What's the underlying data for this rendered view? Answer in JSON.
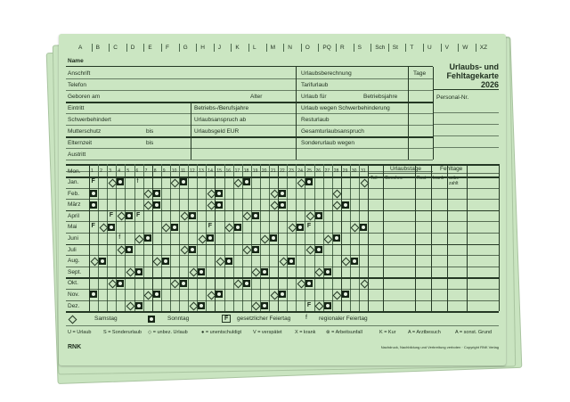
{
  "card": {
    "title_line1": "Urlaubs- und",
    "title_line2": "Fehltagekarte",
    "title_year": "2026",
    "alphabet": [
      "A",
      "B",
      "C",
      "D",
      "E",
      "F",
      "G",
      "H",
      "J",
      "K",
      "L",
      "M",
      "N",
      "O",
      "PQ",
      "R",
      "S",
      "Sch",
      "St",
      "T",
      "U",
      "V",
      "W",
      "XZ"
    ],
    "name_label": "Name",
    "left_rows": [
      "Anschrift",
      "Telefon",
      "Geboren am"
    ],
    "age_label": "Alter",
    "left_rows2": [
      "Eintritt",
      "Schwerbehindert",
      "Mutterschutz",
      "Elternzeit",
      "Austritt"
    ],
    "bis_label": "bis",
    "mid_rows": [
      "Betriebs-/Berufsjahre",
      "Urlaubsanspruch ab",
      "Urlaubsgeld EUR"
    ],
    "calc_header": "Urlaubsberechnung",
    "days_header": "Tage",
    "calc_rows": [
      "Tarifurlaub",
      "Urlaub für",
      "Urlaub wegen Schwerbehinderung",
      "Resturlaub",
      "Gesamturlaubsanspruch",
      "Sonderurlaub wegen"
    ],
    "betriebsjahre_label": "Betriebsjahre",
    "personal_nr_label": "Personal-Nr.",
    "month_header": "Mon.",
    "months": [
      "Jan.",
      "Feb.",
      "März",
      "April",
      "Mai",
      "Juni",
      "Juli",
      "Aug.",
      "Sept.",
      "Okt.",
      "Nov.",
      "Dez."
    ],
    "year": 2026,
    "holidays_legal": [
      [
        1,
        1
      ],
      [
        4,
        3
      ],
      [
        4,
        6
      ],
      [
        5,
        1
      ],
      [
        5,
        14
      ],
      [
        5,
        25
      ],
      [
        10,
        3
      ],
      [
        12,
        25
      ],
      [
        12,
        26
      ]
    ],
    "holidays_regional": [
      [
        1,
        6
      ],
      [
        6,
        4
      ],
      [
        8,
        15
      ],
      [
        11,
        1
      ]
    ],
    "urlaubstage_header": "Urlaubstage",
    "fehltage_header": "Fehltage",
    "sub_headers": [
      "Teil",
      "Genehm.",
      "Rest",
      "krank",
      "unbe-zahlt"
    ],
    "legend": {
      "sat": "Samstag",
      "sun": "Sonntag",
      "legal": "gesetzlicher Feiertag",
      "regional": "regionaler Feiertag",
      "legal_mark": "F",
      "regional_mark": "f"
    },
    "codes": [
      "U = Urlaub",
      "S = Sonderurlaub",
      "◇ = unbez. Urlaub",
      "● = unentschuldigt",
      "V = verspätet",
      "X = krank",
      "⊗ = Arbeitsunfall",
      "K = Kur",
      "A = Arztbesuch",
      "A = sonst. Grund"
    ],
    "brand": "RNK",
    "footer_note": "Nachdruck, Nachbildung und Verbreitung verboten · Copyright RNK Verlag"
  }
}
